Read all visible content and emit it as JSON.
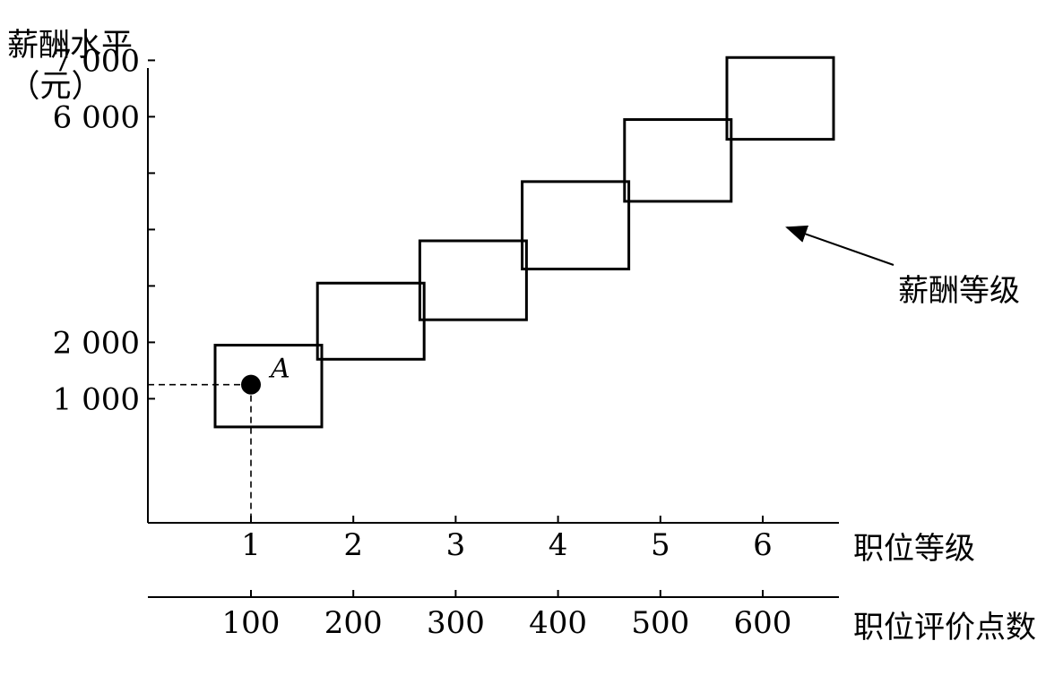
{
  "chart_data": {
    "type": "diagram",
    "title": "",
    "y_axis": {
      "label_line1": "薪酬水平",
      "label_line2": "（元）",
      "ticks": [
        {
          "value": 1000,
          "label": "1 000"
        },
        {
          "value": 2000,
          "label": "2 000"
        },
        {
          "value": 3000,
          "label": ""
        },
        {
          "value": 4000,
          "label": ""
        },
        {
          "value": 5000,
          "label": ""
        },
        {
          "value": 6000,
          "label": "6 000"
        },
        {
          "value": 7000,
          "label": "7 000"
        }
      ]
    },
    "x_axis_grade": {
      "label": "职位等级",
      "ticks": [
        "1",
        "2",
        "3",
        "4",
        "5",
        "6"
      ]
    },
    "x_axis_points": {
      "label": "职位评价点数",
      "ticks": [
        "100",
        "200",
        "300",
        "400",
        "500",
        "600"
      ]
    },
    "salary_grades": [
      {
        "grade": 1,
        "min": 500,
        "max": 1950
      },
      {
        "grade": 2,
        "min": 1700,
        "max": 3050
      },
      {
        "grade": 3,
        "min": 2400,
        "max": 3800
      },
      {
        "grade": 4,
        "min": 3300,
        "max": 4850
      },
      {
        "grade": 5,
        "min": 4500,
        "max": 5950
      },
      {
        "grade": 6,
        "min": 5600,
        "max": 7050
      }
    ],
    "point": {
      "label": "A",
      "grade": 1,
      "points": 100,
      "salary": 1250
    },
    "annotation": {
      "text": "薪酬等级"
    }
  }
}
